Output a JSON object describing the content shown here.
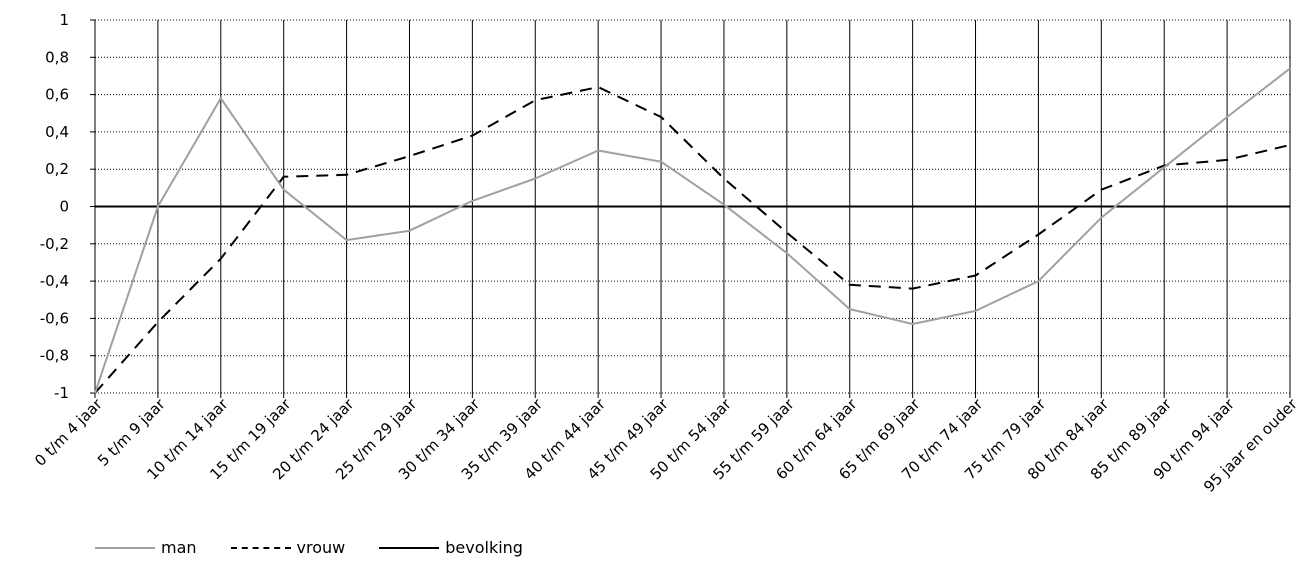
{
  "chart_data": {
    "type": "line",
    "categories": [
      "0 t/m 4 jaar",
      "5 t/m 9 jaar",
      "10 t/m 14 jaar",
      "15 t/m 19 jaar",
      "20 t/m 24 jaar",
      "25 t/m 29 jaar",
      "30 t/m 34 jaar",
      "35 t/m 39 jaar",
      "40 t/m 44 jaar",
      "45 t/m 49 jaar",
      "50 t/m 54 jaar",
      "55 t/m 59 jaar",
      "60 t/m 64 jaar",
      "65 t/m 69 jaar",
      "70 t/m 74 jaar",
      "75 t/m 79 jaar",
      "80 t/m 84 jaar",
      "85 t/m 89 jaar",
      "90 t/m 94 jaar",
      "95 jaar en ouder"
    ],
    "ylim": [
      -1,
      1
    ],
    "yticks": [
      "1",
      "0,8",
      "0,6",
      "0,4",
      "0,2",
      "0",
      "-0,2",
      "-0,4",
      "-0,6",
      "-0,8",
      "-1"
    ],
    "ytick_values": [
      1,
      0.8,
      0.6,
      0.4,
      0.2,
      0,
      -0.2,
      -0.4,
      -0.6,
      -0.8,
      -1
    ],
    "grid": true,
    "legend_position": "bottom-left",
    "series": [
      {
        "name": "man",
        "color": "#a0a0a0",
        "style": "solid",
        "values": [
          -1,
          0,
          0.58,
          0.09,
          -0.18,
          -0.13,
          0.03,
          0.15,
          0.3,
          0.24,
          0.01,
          -0.25,
          -0.55,
          -0.63,
          -0.56,
          -0.4,
          -0.06,
          0.21,
          0.48,
          0.74
        ]
      },
      {
        "name": "vrouw",
        "color": "#000000",
        "style": "dashed",
        "values": [
          -1,
          -0.62,
          -0.28,
          0.16,
          0.17,
          0.27,
          0.38,
          0.57,
          0.64,
          0.48,
          0.15,
          -0.14,
          -0.42,
          -0.44,
          -0.37,
          -0.15,
          0.09,
          0.22,
          0.25,
          0.33
        ]
      },
      {
        "name": "bevolking",
        "color": "#000000",
        "style": "solid",
        "values": [
          0,
          0,
          0,
          0,
          0,
          0,
          0,
          0,
          0,
          0,
          0,
          0,
          0,
          0,
          0,
          0,
          0,
          0,
          0,
          0
        ]
      }
    ]
  }
}
